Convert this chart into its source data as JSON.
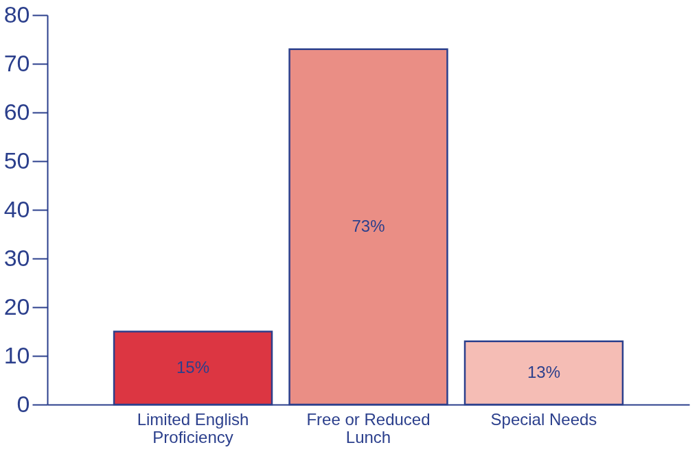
{
  "chart_data": {
    "type": "bar",
    "categories": [
      "Limited English Proficiency",
      "Free or Reduced Lunch",
      "Special Needs"
    ],
    "values": [
      15,
      73,
      13
    ],
    "value_labels": [
      "15%",
      "73%",
      "13%"
    ],
    "colors": [
      "#dc3642",
      "#ea8e85",
      "#f5bdb5"
    ],
    "ylim": [
      0,
      80
    ],
    "yticks": [
      0,
      10,
      20,
      30,
      40,
      50,
      60,
      70,
      80
    ],
    "grid": false
  }
}
